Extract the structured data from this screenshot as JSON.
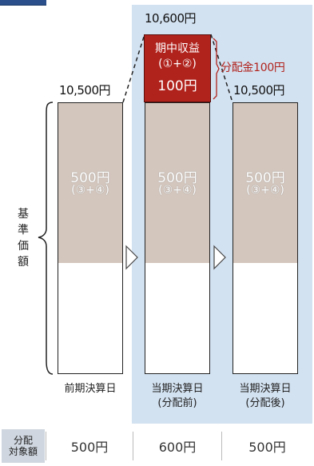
{
  "total_before": "10,600円",
  "left_top_value": "10,500円",
  "right_top_value": "10,500円",
  "gain_box": {
    "line1": "期中収益",
    "line2": "(①+②)",
    "line3": "100円"
  },
  "distribution_label": "分配金100円",
  "base_value": {
    "amount": "500円",
    "formula": "(③+④)"
  },
  "axis_label": "基準価額",
  "columns": [
    {
      "line1": "前期決算日",
      "line2": ""
    },
    {
      "line1": "当期決算日",
      "line2": "(分配前)"
    },
    {
      "line1": "当期決算日",
      "line2": "(分配後)"
    }
  ],
  "table": {
    "header_line1": "分配",
    "header_line2": "対象額",
    "values": [
      "500円",
      "600円",
      "500円"
    ]
  },
  "colors": {
    "highlight": "#d3e2f1",
    "base": "#d3c6bd",
    "gain": "#b0221c",
    "header": "#cfd6df"
  }
}
